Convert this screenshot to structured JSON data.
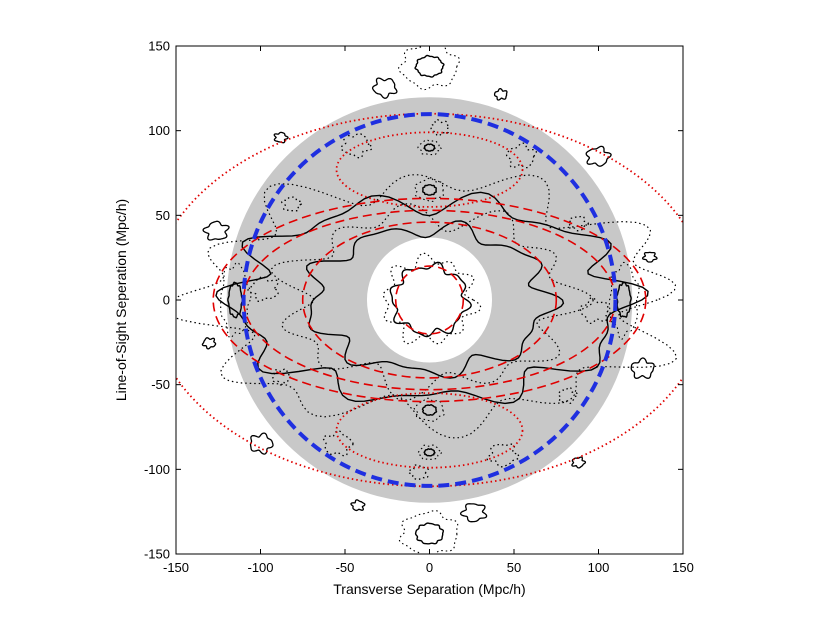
{
  "chart_data": {
    "type": "contour",
    "title": "",
    "xlabel": "Transverse Separation (Mpc/h)",
    "ylabel": "Line-of-Sight Seperation (Mpc/h)",
    "xlim": [
      -150,
      150
    ],
    "ylim": [
      -150,
      150
    ],
    "xticks": [
      -150,
      -100,
      -50,
      0,
      50,
      100,
      150
    ],
    "yticks": [
      -150,
      -100,
      -50,
      0,
      50,
      100,
      150
    ],
    "grid": false,
    "legend": "none",
    "shaded_region": {
      "shape": "annulus",
      "inner_radius": 37,
      "outer_radius": 120,
      "color": "#c8c8c8"
    },
    "reference_circle": {
      "radius": 110,
      "color": "#1f2fe0",
      "style": "dashed"
    },
    "data_contours": {
      "color": "#000000",
      "styles": [
        "solid",
        "dotted"
      ],
      "features": [
        {
          "kind": "ring",
          "center": [
            0,
            0
          ],
          "rx": 22,
          "ry": 20
        },
        {
          "kind": "ring",
          "center": [
            0,
            0
          ],
          "rx": 70,
          "ry": 42
        },
        {
          "kind": "ring",
          "center": [
            0,
            0
          ],
          "rx": 115,
          "ry": 58
        },
        {
          "kind": "blob",
          "center": [
            0,
            138
          ],
          "rx": 8,
          "ry": 6
        },
        {
          "kind": "blob",
          "center": [
            0,
            -138
          ],
          "rx": 8,
          "ry": 6
        },
        {
          "kind": "blob",
          "center": [
            0,
            65
          ],
          "rx": 4,
          "ry": 3
        },
        {
          "kind": "blob",
          "center": [
            0,
            -65
          ],
          "rx": 4,
          "ry": 3
        },
        {
          "kind": "blob",
          "center": [
            0,
            90
          ],
          "rx": 3,
          "ry": 2
        },
        {
          "kind": "blob",
          "center": [
            0,
            -90
          ],
          "rx": 3,
          "ry": 2
        },
        {
          "kind": "blob",
          "center": [
            -115,
            0
          ],
          "rx": 4,
          "ry": 10
        },
        {
          "kind": "blob",
          "center": [
            115,
            0
          ],
          "rx": 4,
          "ry": 10
        }
      ]
    },
    "model_contours": {
      "color": "#e00000",
      "styles": [
        "dashed",
        "dotted"
      ],
      "features": [
        {
          "kind": "ring",
          "center": [
            0,
            0
          ],
          "rx": 20,
          "ry": 20
        },
        {
          "kind": "ring",
          "center": [
            0,
            0
          ],
          "rx": 75,
          "ry": 46
        },
        {
          "kind": "ring",
          "center": [
            0,
            0
          ],
          "rx": 110,
          "ry": 53
        },
        {
          "kind": "ring",
          "center": [
            0,
            0
          ],
          "rx": 128,
          "ry": 60
        },
        {
          "kind": "lobe",
          "center": [
            0,
            77
          ],
          "rx": 55,
          "ry": 22
        },
        {
          "kind": "lobe",
          "center": [
            0,
            -77
          ],
          "rx": 55,
          "ry": 22
        },
        {
          "kind": "arc",
          "center": [
            0,
            0
          ],
          "rx": 165,
          "ry": 110
        }
      ]
    }
  }
}
